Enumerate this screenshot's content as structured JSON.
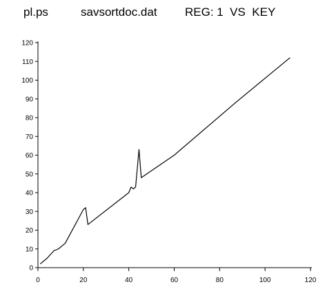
{
  "header": {
    "file": "pl.ps",
    "dataset": "savsortdoc.dat",
    "label": "REG: 1  VS  KEY"
  },
  "chart_data": {
    "type": "line",
    "title": "",
    "xlabel": "",
    "ylabel": "",
    "xlim": [
      0,
      120
    ],
    "ylim": [
      0,
      120
    ],
    "xticks": [
      0,
      20,
      40,
      60,
      80,
      100,
      120
    ],
    "yticks": [
      0,
      10,
      20,
      30,
      40,
      50,
      60,
      70,
      80,
      90,
      100,
      110,
      120
    ],
    "grid": false,
    "line_color": "#000000",
    "series": [
      {
        "x": [
          1,
          4,
          7,
          9,
          12,
          20,
          21,
          22,
          40,
          41,
          42,
          43,
          44.5,
          45.5,
          60,
          87,
          111
        ],
        "values": [
          2,
          5,
          9,
          10,
          13,
          31,
          32,
          23,
          40,
          43,
          42,
          43,
          63,
          48,
          60,
          88,
          112
        ]
      }
    ]
  }
}
